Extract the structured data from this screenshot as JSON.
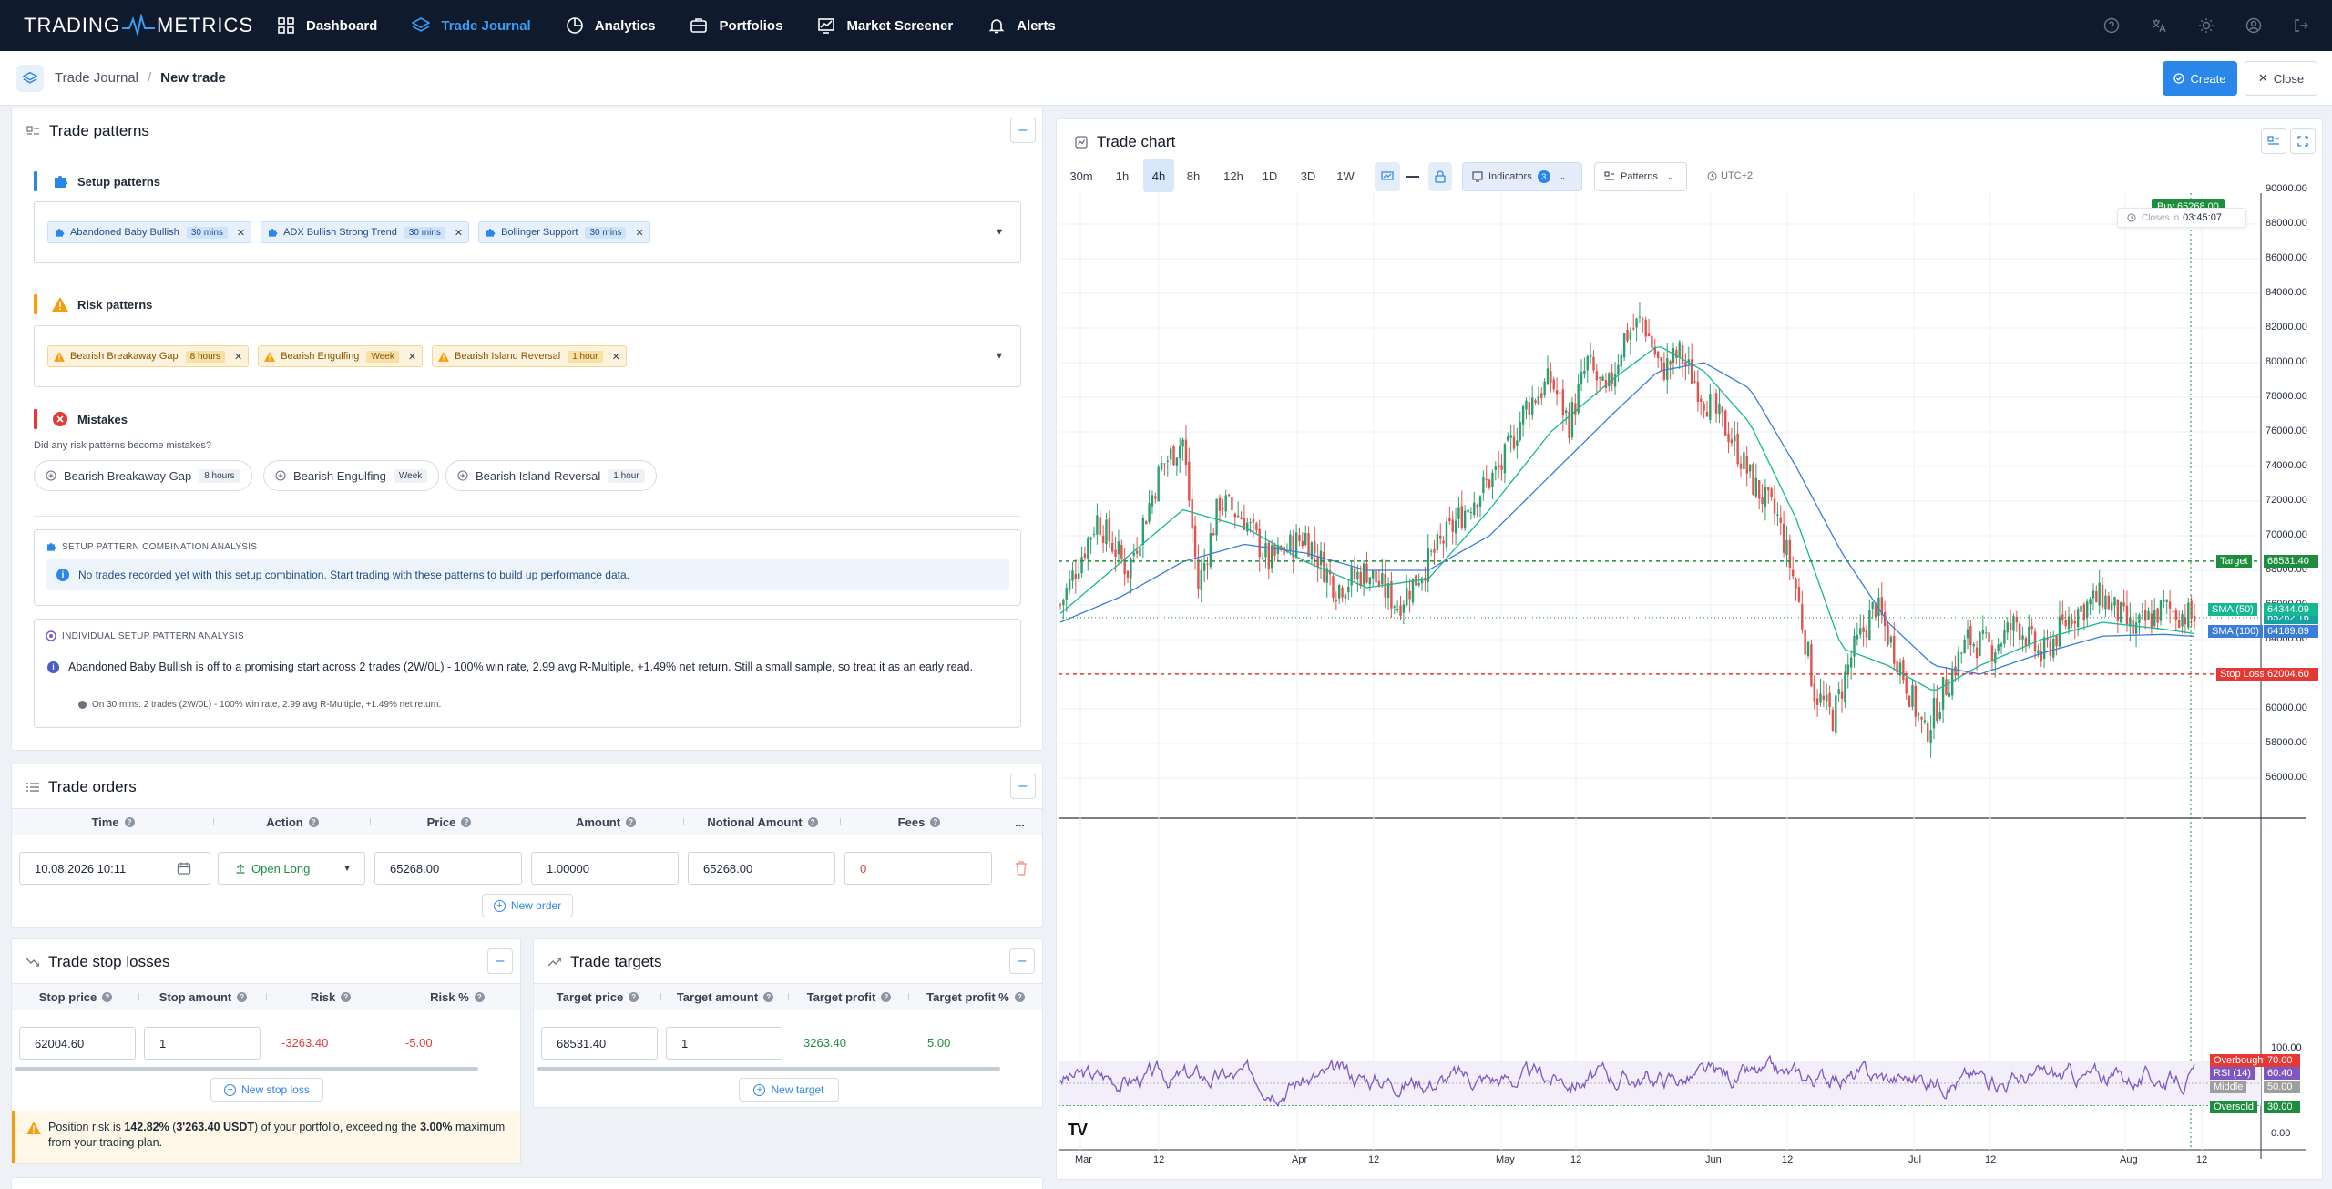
{
  "nav": {
    "logo_left": "TRADING",
    "logo_right": "METRICS",
    "items": [
      {
        "label": "Dashboard",
        "icon": "dashboard-icon"
      },
      {
        "label": "Trade Journal",
        "icon": "layers-icon",
        "active": true
      },
      {
        "label": "Analytics",
        "icon": "analytics-icon"
      },
      {
        "label": "Portfolios",
        "icon": "portfolio-icon"
      },
      {
        "label": "Market Screener",
        "icon": "screener-icon"
      },
      {
        "label": "Alerts",
        "icon": "bell-icon"
      }
    ],
    "right_icons": [
      "help-icon",
      "translate-icon",
      "sun-icon",
      "user-icon",
      "logout-icon"
    ]
  },
  "breadcrumb": {
    "parent": "Trade Journal",
    "sep": "/",
    "current": "New trade"
  },
  "actions": {
    "create": "Create",
    "close": "Close"
  },
  "patterns": {
    "title": "Trade patterns",
    "setup": {
      "label": "Setup patterns",
      "chips": [
        {
          "name": "Abandoned Baby Bullish",
          "tf": "30 mins"
        },
        {
          "name": "ADX Bullish Strong Trend",
          "tf": "30 mins"
        },
        {
          "name": "Bollinger Support",
          "tf": "30 mins"
        }
      ]
    },
    "risk": {
      "label": "Risk patterns",
      "chips": [
        {
          "name": "Bearish Breakaway Gap",
          "tf": "8 hours"
        },
        {
          "name": "Bearish Engulfing",
          "tf": "Week"
        },
        {
          "name": "Bearish Island Reversal",
          "tf": "1 hour"
        }
      ]
    },
    "mistakes": {
      "label": "Mistakes",
      "question": "Did any risk patterns become mistakes?",
      "pills": [
        {
          "name": "Bearish Breakaway Gap",
          "tf": "8 hours"
        },
        {
          "name": "Bearish Engulfing",
          "tf": "Week"
        },
        {
          "name": "Bearish Island Reversal",
          "tf": "1 hour"
        }
      ]
    },
    "combo": {
      "title": "SETUP PATTERN COMBINATION ANALYSIS",
      "info": "No trades recorded yet with this setup combination. Start trading with these patterns to build up performance data."
    },
    "individual": {
      "title": "INDIVIDUAL SETUP PATTERN ANALYSIS",
      "text": "Abandoned Baby Bullish is off to a promising start across 2 trades (2W/0L) - 100% win rate, 2.99 avg R-Multiple, +1.49% net return. Still a small sample, so treat it as an early read.",
      "sub": "On 30 mins: 2 trades (2W/0L) - 100% win rate, 2.99 avg R-Multiple, +1.49% net return."
    }
  },
  "orders": {
    "title": "Trade orders",
    "columns": [
      "Time",
      "Action",
      "Price",
      "Amount",
      "Notional Amount",
      "Fees",
      "..."
    ],
    "row": {
      "time": "10.08.2026 10:11",
      "action": "Open Long",
      "price": "65268.00",
      "amount": "1.00000",
      "notional": "65268.00",
      "fees": "0"
    },
    "new_label": "New order"
  },
  "stops": {
    "title": "Trade stop losses",
    "columns": [
      "Stop price",
      "Stop amount",
      "Risk",
      "Risk %"
    ],
    "row": {
      "price": "62004.60",
      "amount": "1",
      "risk": "-3263.40",
      "risk_pct": "-5.00"
    },
    "new_label": "New stop loss",
    "warning": {
      "pre": "Position risk is ",
      "pct": "142.82%",
      "mid1": " (",
      "usdt": "3'263.40 USDT",
      "mid2": ") of your portfolio, exceeding the ",
      "max": "3.00%",
      "post": " maximum from your trading plan."
    }
  },
  "targets": {
    "title": "Trade targets",
    "columns": [
      "Target price",
      "Target amount",
      "Target profit",
      "Target profit %"
    ],
    "row": {
      "price": "68531.40",
      "amount": "1",
      "profit": "3263.40",
      "profit_pct": "5.00"
    },
    "new_label": "New target"
  },
  "chart": {
    "title": "Trade chart",
    "timeframes": [
      "30m",
      "1h",
      "4h",
      "8h",
      "12h",
      "1D",
      "3D",
      "1W"
    ],
    "active_tf": "4h",
    "indicators_label": "Indicators",
    "indicators_count": "3",
    "patterns_label": "Patterns",
    "timezone": "UTC+2",
    "buy_label": "Buy 65268.00",
    "closes_label": "Closes in",
    "countdown": "03:45:07",
    "logo": "TV"
  },
  "chart_data": {
    "type": "candlestick",
    "y_axis_labels": [
      "90000.00",
      "88000.00",
      "86000.00",
      "84000.00",
      "82000.00",
      "80000.00",
      "78000.00",
      "76000.00",
      "74000.00",
      "72000.00",
      "70000.00",
      "68000.00",
      "66000.00",
      "64000.00",
      "62000.00",
      "60000.00",
      "58000.00",
      "56000.00"
    ],
    "ylim": [
      54000,
      90000
    ],
    "x_axis_labels": [
      "Mar",
      "12",
      "Apr",
      "12",
      "May",
      "12",
      "Jun",
      "12",
      "Jul",
      "12",
      "Aug",
      "12"
    ],
    "price_lines": [
      {
        "name": "Target",
        "value": 68531.4,
        "color": "#1e8e3e"
      },
      {
        "name": "Stop Loss",
        "value": 62004.6,
        "color": "#e53935"
      },
      {
        "name": "Buy",
        "value": 65268.0,
        "color": "#1e8e3e"
      }
    ],
    "last_price": 65262.16,
    "sma": [
      {
        "name": "SMA (50)",
        "value": 64344.09,
        "color": "#16b893"
      },
      {
        "name": "SMA (100)",
        "value": 64189.89,
        "color": "#3b7dd8"
      }
    ],
    "close_path": [
      [
        0,
        66000
      ],
      [
        12,
        71000
      ],
      [
        22,
        68000
      ],
      [
        33,
        74000
      ],
      [
        40,
        75500
      ],
      [
        45,
        67000
      ],
      [
        52,
        72000
      ],
      [
        60,
        71000
      ],
      [
        68,
        68500
      ],
      [
        80,
        70000
      ],
      [
        90,
        67000
      ],
      [
        100,
        68000
      ],
      [
        110,
        66000
      ],
      [
        118,
        68000
      ],
      [
        126,
        70000
      ],
      [
        134,
        72000
      ],
      [
        144,
        74000
      ],
      [
        152,
        77500
      ],
      [
        160,
        79000
      ],
      [
        166,
        76500
      ],
      [
        172,
        80000
      ],
      [
        178,
        78000
      ],
      [
        184,
        81500
      ],
      [
        190,
        82500
      ],
      [
        196,
        79500
      ],
      [
        202,
        80500
      ],
      [
        210,
        78000
      ],
      [
        218,
        76000
      ],
      [
        226,
        73000
      ],
      [
        234,
        71000
      ],
      [
        240,
        67000
      ],
      [
        246,
        61000
      ],
      [
        252,
        59500
      ],
      [
        258,
        63000
      ],
      [
        266,
        66000
      ],
      [
        274,
        62500
      ],
      [
        282,
        58500
      ],
      [
        288,
        61000
      ],
      [
        296,
        64000
      ],
      [
        304,
        63500
      ],
      [
        312,
        65000
      ],
      [
        320,
        63000
      ],
      [
        330,
        65500
      ],
      [
        340,
        66500
      ],
      [
        350,
        64500
      ],
      [
        360,
        65800
      ],
      [
        370,
        65262
      ]
    ],
    "sma50_path": [
      [
        0,
        65500
      ],
      [
        20,
        68500
      ],
      [
        40,
        71500
      ],
      [
        60,
        70500
      ],
      [
        80,
        68500
      ],
      [
        100,
        67000
      ],
      [
        120,
        67500
      ],
      [
        140,
        71500
      ],
      [
        160,
        76000
      ],
      [
        180,
        79000
      ],
      [
        195,
        81000
      ],
      [
        210,
        79500
      ],
      [
        225,
        76500
      ],
      [
        240,
        71000
      ],
      [
        255,
        63500
      ],
      [
        270,
        62500
      ],
      [
        285,
        61000
      ],
      [
        300,
        62500
      ],
      [
        320,
        64000
      ],
      [
        340,
        65000
      ],
      [
        360,
        64600
      ],
      [
        370,
        64344
      ]
    ],
    "sma100_path": [
      [
        0,
        65000
      ],
      [
        20,
        66500
      ],
      [
        40,
        68500
      ],
      [
        60,
        69500
      ],
      [
        80,
        69000
      ],
      [
        100,
        68000
      ],
      [
        120,
        68000
      ],
      [
        140,
        70000
      ],
      [
        160,
        73500
      ],
      [
        180,
        77000
      ],
      [
        195,
        79500
      ],
      [
        210,
        80000
      ],
      [
        225,
        78500
      ],
      [
        240,
        74000
      ],
      [
        255,
        69000
      ],
      [
        270,
        65000
      ],
      [
        285,
        62500
      ],
      [
        300,
        62000
      ],
      [
        320,
        63200
      ],
      [
        340,
        64200
      ],
      [
        360,
        64300
      ],
      [
        370,
        64190
      ]
    ],
    "rsi": {
      "y_axis_labels": [
        "100.00",
        "0.00"
      ],
      "levels": [
        {
          "name": "Overbought",
          "value": "70.00",
          "color": "#e53935"
        },
        {
          "name": "RSI (14)",
          "value": "60.40",
          "color": "#7e57c2"
        },
        {
          "name": "Middle",
          "value": "50.00",
          "color": "#9e9e9e"
        },
        {
          "name": "Oversold",
          "value": "30.00",
          "color": "#1e8e3e"
        }
      ]
    }
  }
}
